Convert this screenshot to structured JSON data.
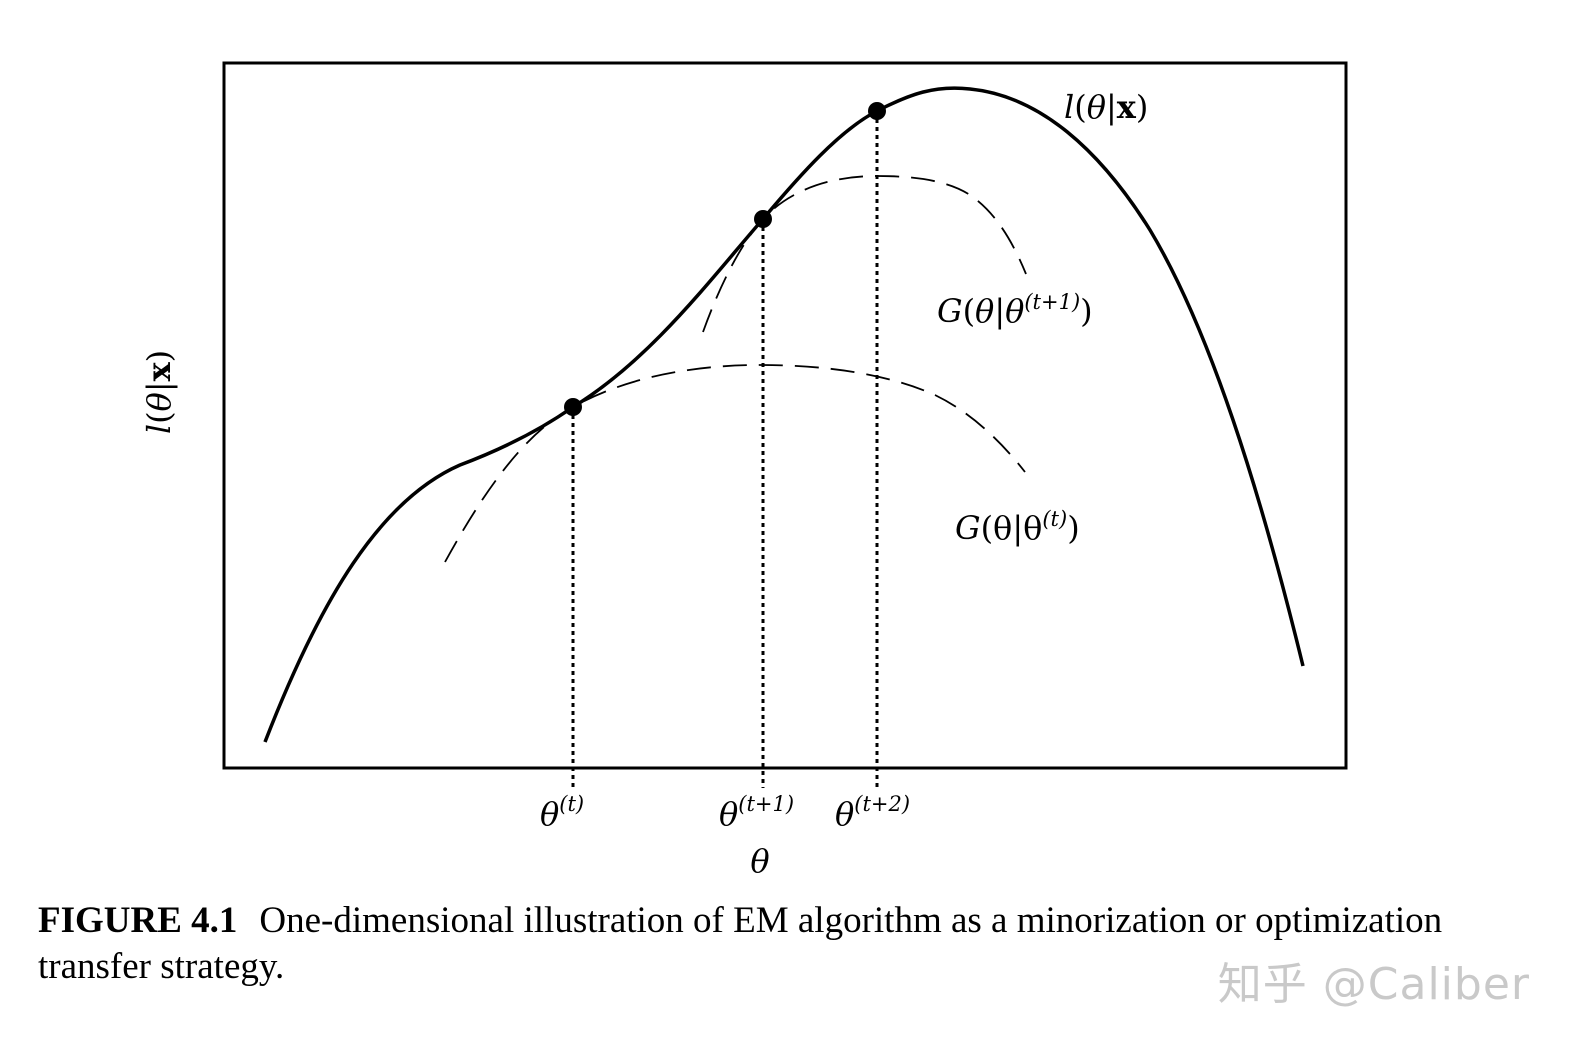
{
  "figure": {
    "curves": {
      "likelihood": {
        "label_fn": "l",
        "label_arg": "θ",
        "label_given": "x"
      },
      "g_t1": {
        "label_fn": "G",
        "label_arg": "θ",
        "label_given": "θ",
        "label_sup": "(t+1)"
      },
      "g_t": {
        "label_fn": "G",
        "label_arg": "θ",
        "label_given": "θ",
        "label_sup": "(t)"
      }
    },
    "y_axis_label": {
      "fn": "l",
      "arg": "θ",
      "given": "x"
    },
    "x_axis_label": "θ",
    "ticks": [
      {
        "base": "θ",
        "sup": "(t)"
      },
      {
        "base": "θ",
        "sup": "(t+1)"
      },
      {
        "base": "θ",
        "sup": "(t+2)"
      }
    ]
  },
  "caption": {
    "label": "FIGURE 4.1",
    "text": "One-dimensional illustration of EM algorithm as a minorization or optimization transfer strategy."
  },
  "watermark": "知乎 @Caliber"
}
